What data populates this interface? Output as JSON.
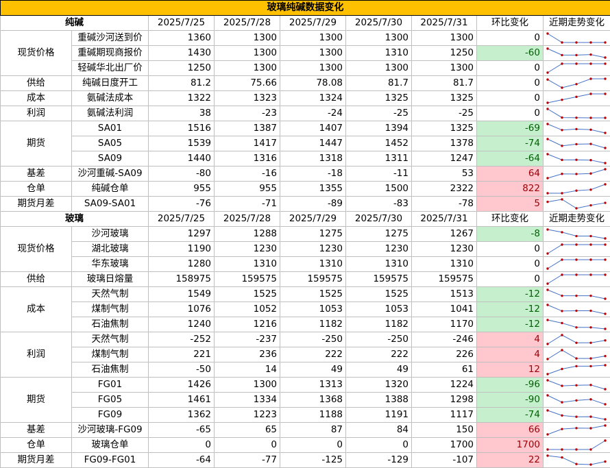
{
  "title": "玻璃纯碱数据变化",
  "colors": {
    "header_fill": "#ffc000",
    "decrease_fill": "#c6efce",
    "decrease_text": "#006100",
    "increase_fill": "#ffc7ce",
    "increase_text": "#9c0006",
    "sparkline_line": "#4472c4",
    "sparkline_marker": "#c00000"
  },
  "sections": [
    {
      "name": "纯碱",
      "dates": [
        "2025/7/25",
        "2025/7/28",
        "2025/7/29",
        "2025/7/30",
        "2025/7/31"
      ],
      "change_label": "环比变化",
      "trend_label": "近期走势变化",
      "groups": [
        {
          "category": "现货价格",
          "rows": [
            {
              "item": "重碱沙河送到价",
              "values": [
                "1360",
                "1300",
                "1300",
                "1300",
                "1300"
              ],
              "change": "0",
              "series": [
                1360,
                1300,
                1300,
                1300,
                1300
              ]
            },
            {
              "item": "重碱期现商报价",
              "values": [
                "1430",
                "1300",
                "1300",
                "1310",
                "1250"
              ],
              "change": "-60",
              "series": [
                1430,
                1300,
                1300,
                1310,
                1250
              ]
            },
            {
              "item": "轻碱华北出厂价",
              "values": [
                "1250",
                "1300",
                "1300",
                "1300",
                "1300"
              ],
              "change": "0",
              "series": [
                1250,
                1300,
                1300,
                1300,
                1300
              ]
            }
          ]
        },
        {
          "category": "供给",
          "rows": [
            {
              "item": "纯碱日度开工",
              "values": [
                "81.2",
                "75.66",
                "78.08",
                "81.7",
                "81.7"
              ],
              "change": "0",
              "series": [
                81.2,
                75.66,
                78.08,
                81.7,
                81.7
              ]
            }
          ]
        },
        {
          "category": "成本",
          "rows": [
            {
              "item": "氨碱法成本",
              "values": [
                "1322",
                "1323",
                "1324",
                "1325",
                "1325"
              ],
              "change": "0",
              "series": [
                1322,
                1323,
                1324,
                1325,
                1325
              ]
            }
          ]
        },
        {
          "category": "利润",
          "rows": [
            {
              "item": "氨碱法利润",
              "values": [
                "38",
                "-23",
                "-24",
                "-25",
                "-25"
              ],
              "change": "0",
              "series": [
                38,
                -23,
                -24,
                -25,
                -25
              ]
            }
          ]
        },
        {
          "category": "期货",
          "rows": [
            {
              "item": "SA01",
              "values": [
                "1516",
                "1387",
                "1407",
                "1394",
                "1325"
              ],
              "change": "-69",
              "series": [
                1516,
                1387,
                1407,
                1394,
                1325
              ]
            },
            {
              "item": "SA05",
              "values": [
                "1539",
                "1417",
                "1447",
                "1452",
                "1378"
              ],
              "change": "-74",
              "series": [
                1539,
                1417,
                1447,
                1452,
                1378
              ]
            },
            {
              "item": "SA09",
              "values": [
                "1440",
                "1316",
                "1318",
                "1311",
                "1247"
              ],
              "change": "-64",
              "series": [
                1440,
                1316,
                1318,
                1311,
                1247
              ]
            }
          ]
        },
        {
          "category": "基差",
          "rows": [
            {
              "item": "沙河重碱-SA09",
              "values": [
                "-80",
                "-16",
                "-18",
                "-11",
                "53"
              ],
              "change": "64",
              "series": [
                -80,
                -16,
                -18,
                -11,
                53
              ]
            }
          ]
        },
        {
          "category": "仓单",
          "rows": [
            {
              "item": "纯碱仓单",
              "values": [
                "955",
                "955",
                "1355",
                "1500",
                "2322"
              ],
              "change": "822",
              "series": [
                955,
                955,
                1355,
                1500,
                2322
              ]
            }
          ]
        },
        {
          "category": "期货月差",
          "rows": [
            {
              "item": "SA09-SA01",
              "values": [
                "-76",
                "-71",
                "-89",
                "-83",
                "-78"
              ],
              "change": "5",
              "series": [
                -76,
                -71,
                -89,
                -83,
                -78
              ]
            }
          ]
        }
      ]
    },
    {
      "name": "玻璃",
      "dates": [
        "2025/7/25",
        "2025/7/28",
        "2025/7/29",
        "2025/7/30",
        "2025/7/31"
      ],
      "change_label": "环比变化",
      "trend_label": "近期走势变化",
      "groups": [
        {
          "category": "现货价格",
          "rows": [
            {
              "item": "沙河玻璃",
              "values": [
                "1297",
                "1288",
                "1275",
                "1275",
                "1267"
              ],
              "change": "-8",
              "series": [
                1297,
                1288,
                1275,
                1275,
                1267
              ]
            },
            {
              "item": "湖北玻璃",
              "values": [
                "1190",
                "1230",
                "1230",
                "1230",
                "1230"
              ],
              "change": "0",
              "series": [
                1190,
                1230,
                1230,
                1230,
                1230
              ]
            },
            {
              "item": "华东玻璃",
              "values": [
                "1280",
                "1310",
                "1310",
                "1310",
                "1310"
              ],
              "change": "0",
              "series": [
                1280,
                1310,
                1310,
                1310,
                1310
              ]
            }
          ]
        },
        {
          "category": "供给",
          "rows": [
            {
              "item": "玻璃日熔量",
              "values": [
                "158975",
                "159575",
                "159575",
                "159575",
                "159575"
              ],
              "change": "0",
              "series": [
                158975,
                159575,
                159575,
                159575,
                159575
              ]
            }
          ]
        },
        {
          "category": "成本",
          "rows": [
            {
              "item": "天然气制",
              "values": [
                "1549",
                "1525",
                "1525",
                "1525",
                "1513"
              ],
              "change": "-12",
              "series": [
                1549,
                1525,
                1525,
                1525,
                1513
              ]
            },
            {
              "item": "煤制气制",
              "values": [
                "1076",
                "1052",
                "1053",
                "1053",
                "1041"
              ],
              "change": "-12",
              "series": [
                1076,
                1052,
                1053,
                1053,
                1041
              ]
            },
            {
              "item": "石油焦制",
              "values": [
                "1240",
                "1216",
                "1182",
                "1182",
                "1170"
              ],
              "change": "-12",
              "series": [
                1240,
                1216,
                1182,
                1182,
                1170
              ]
            }
          ]
        },
        {
          "category": "利润",
          "rows": [
            {
              "item": "天然气制",
              "values": [
                "-252",
                "-237",
                "-250",
                "-250",
                "-246"
              ],
              "change": "4",
              "series": [
                -252,
                -237,
                -250,
                -250,
                -246
              ]
            },
            {
              "item": "煤制气制",
              "values": [
                "221",
                "236",
                "222",
                "222",
                "226"
              ],
              "change": "4",
              "series": [
                221,
                236,
                222,
                222,
                226
              ]
            },
            {
              "item": "石油焦制",
              "values": [
                "-50",
                "14",
                "49",
                "49",
                "61"
              ],
              "change": "12",
              "series": [
                -50,
                14,
                49,
                49,
                61
              ]
            }
          ]
        },
        {
          "category": "期货",
          "rows": [
            {
              "item": "FG01",
              "values": [
                "1426",
                "1300",
                "1313",
                "1320",
                "1224"
              ],
              "change": "-96",
              "series": [
                1426,
                1300,
                1313,
                1320,
                1224
              ]
            },
            {
              "item": "FG05",
              "values": [
                "1461",
                "1334",
                "1368",
                "1388",
                "1298"
              ],
              "change": "-90",
              "series": [
                1461,
                1334,
                1368,
                1388,
                1298
              ]
            },
            {
              "item": "FG09",
              "values": [
                "1362",
                "1223",
                "1188",
                "1191",
                "1117"
              ],
              "change": "-74",
              "series": [
                1362,
                1223,
                1188,
                1191,
                1117
              ]
            }
          ]
        },
        {
          "category": "基差",
          "rows": [
            {
              "item": "沙河玻璃-FG09",
              "values": [
                "-65",
                "65",
                "87",
                "84",
                "150"
              ],
              "change": "66",
              "series": [
                -65,
                65,
                87,
                84,
                150
              ]
            }
          ]
        },
        {
          "category": "仓单",
          "rows": [
            {
              "item": "玻璃仓单",
              "values": [
                "0",
                "0",
                "0",
                "0",
                "1700"
              ],
              "change": "1700",
              "series": [
                0,
                0,
                0,
                0,
                1700
              ]
            }
          ]
        },
        {
          "category": "期货月差",
          "rows": [
            {
              "item": "FG09-FG01",
              "values": [
                "-64",
                "-77",
                "-125",
                "-129",
                "-107"
              ],
              "change": "22",
              "series": [
                -64,
                -77,
                -125,
                -129,
                -107
              ]
            }
          ]
        }
      ]
    }
  ]
}
